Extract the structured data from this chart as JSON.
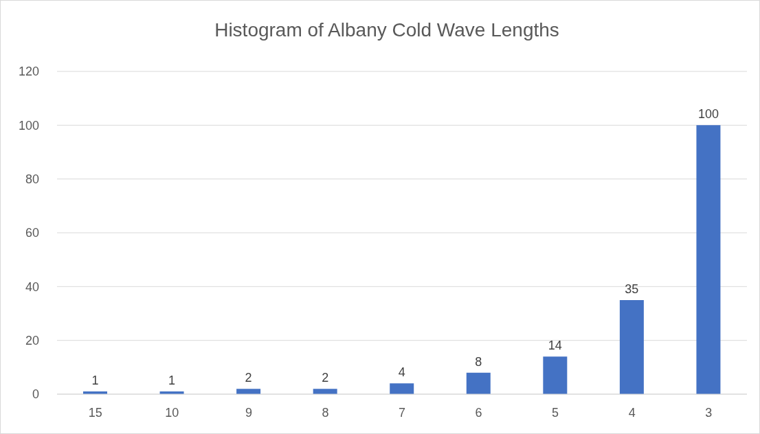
{
  "chart_data": {
    "type": "bar",
    "title": "Histogram of Albany Cold Wave Lengths",
    "categories": [
      "15",
      "10",
      "9",
      "8",
      "7",
      "6",
      "5",
      "4",
      "3"
    ],
    "values": [
      1,
      1,
      2,
      2,
      4,
      8,
      14,
      35,
      100
    ],
    "color": "#4472c4",
    "ylim": [
      0,
      120
    ],
    "yticks": [
      0,
      20,
      40,
      60,
      80,
      100,
      120
    ],
    "grid": "y",
    "data_labels": true
  }
}
